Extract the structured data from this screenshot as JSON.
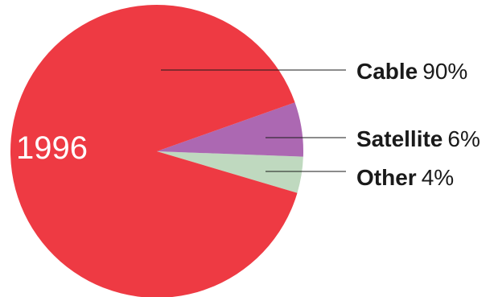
{
  "chart_data": {
    "type": "pie",
    "center_label": "1996",
    "slices": [
      {
        "label": "Cable",
        "value": 90,
        "display": "90%",
        "color": "#ee3a43"
      },
      {
        "label": "Satellite",
        "value": 6,
        "display": "6%",
        "color": "#ac68b2"
      },
      {
        "label": "Other",
        "value": 4,
        "display": "4%",
        "color": "#bfd9bf"
      }
    ],
    "legend_placement": "right"
  }
}
